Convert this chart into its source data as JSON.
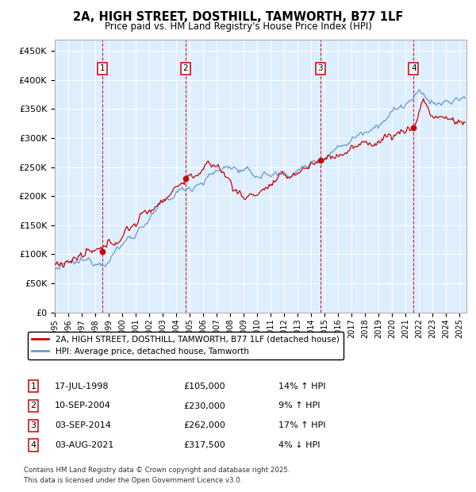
{
  "title": "2A, HIGH STREET, DOSTHILL, TAMWORTH, B77 1LF",
  "subtitle": "Price paid vs. HM Land Registry's House Price Index (HPI)",
  "ylabel_ticks": [
    "£0",
    "£50K",
    "£100K",
    "£150K",
    "£200K",
    "£250K",
    "£300K",
    "£350K",
    "£400K",
    "£450K"
  ],
  "ytick_values": [
    0,
    50000,
    100000,
    150000,
    200000,
    250000,
    300000,
    350000,
    400000,
    450000
  ],
  "ylim": [
    0,
    470000
  ],
  "xlim_start": 1995.0,
  "xlim_end": 2025.5,
  "legend_line1": "2A, HIGH STREET, DOSTHILL, TAMWORTH, B77 1LF (detached house)",
  "legend_line2": "HPI: Average price, detached house, Tamworth",
  "sale_dates": [
    1998.54,
    2004.69,
    2014.67,
    2021.58
  ],
  "sale_prices": [
    105000,
    230000,
    262000,
    317500
  ],
  "sale_labels": [
    {
      "num": 1,
      "date": "17-JUL-1998",
      "price": "£105,000",
      "pct": "14%",
      "dir": "↑",
      "x": 1998.54
    },
    {
      "num": 2,
      "date": "10-SEP-2004",
      "price": "£230,000",
      "pct": "9%",
      "dir": "↑",
      "x": 2004.69
    },
    {
      "num": 3,
      "date": "03-SEP-2014",
      "price": "£262,000",
      "pct": "17%",
      "dir": "↑",
      "x": 2014.67
    },
    {
      "num": 4,
      "date": "03-AUG-2021",
      "price": "£317,500",
      "pct": "4%",
      "dir": "↓",
      "x": 2021.58
    }
  ],
  "footer1": "Contains HM Land Registry data © Crown copyright and database right 2025.",
  "footer2": "This data is licensed under the Open Government Licence v3.0.",
  "red_color": "#cc0000",
  "blue_color": "#6699cc",
  "bg_color": "#ddeeff",
  "grid_color": "#ffffff",
  "box_color": "#cc0000"
}
